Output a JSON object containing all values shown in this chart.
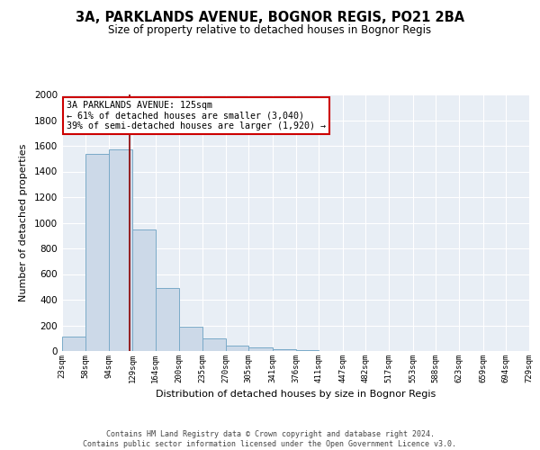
{
  "title1": "3A, PARKLANDS AVENUE, BOGNOR REGIS, PO21 2BA",
  "title2": "Size of property relative to detached houses in Bognor Regis",
  "xlabel": "Distribution of detached houses by size in Bognor Regis",
  "ylabel": "Number of detached properties",
  "bar_color": "#ccd9e8",
  "bar_edge_color": "#7aaac8",
  "bin_edges": [
    23,
    58,
    94,
    129,
    164,
    200,
    235,
    270,
    305,
    341,
    376,
    411,
    447,
    482,
    517,
    553,
    588,
    623,
    659,
    694,
    729
  ],
  "bar_heights": [
    110,
    1540,
    1570,
    950,
    490,
    190,
    100,
    40,
    25,
    15,
    10,
    0,
    0,
    0,
    0,
    0,
    0,
    0,
    0,
    0
  ],
  "property_size": 125,
  "vline_color": "#8b0000",
  "annotation_text": "3A PARKLANDS AVENUE: 125sqm\n← 61% of detached houses are smaller (3,040)\n39% of semi-detached houses are larger (1,920) →",
  "annotation_box_color": "white",
  "annotation_box_edge": "#cc0000",
  "ylim": [
    0,
    2000
  ],
  "yticks": [
    0,
    200,
    400,
    600,
    800,
    1000,
    1200,
    1400,
    1600,
    1800,
    2000
  ],
  "background_color": "#e8eef5",
  "grid_color": "white",
  "footer_text": "Contains HM Land Registry data © Crown copyright and database right 2024.\nContains public sector information licensed under the Open Government Licence v3.0.",
  "tick_labels": [
    "23sqm",
    "58sqm",
    "94sqm",
    "129sqm",
    "164sqm",
    "200sqm",
    "235sqm",
    "270sqm",
    "305sqm",
    "341sqm",
    "376sqm",
    "411sqm",
    "447sqm",
    "482sqm",
    "517sqm",
    "553sqm",
    "588sqm",
    "623sqm",
    "659sqm",
    "694sqm",
    "729sqm"
  ]
}
